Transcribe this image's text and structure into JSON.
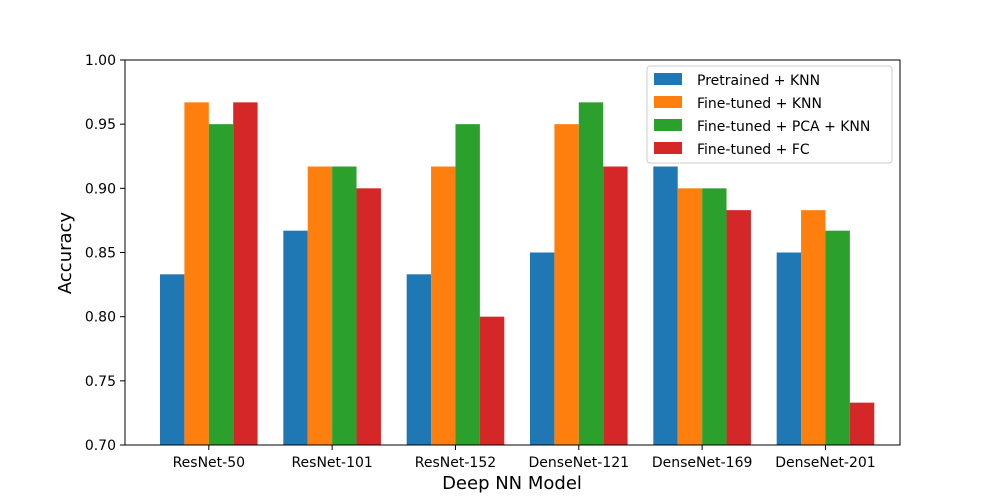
{
  "chart_data": {
    "type": "bar",
    "xlabel": "Deep NN Model",
    "ylabel": "Accuracy",
    "ylim": [
      0.7,
      1.0
    ],
    "yticks": [
      "0.70",
      "0.75",
      "0.80",
      "0.85",
      "0.90",
      "0.95",
      "1.00"
    ],
    "grid": false,
    "legend_position": "top-right",
    "categories": [
      "ResNet-50",
      "ResNet-101",
      "ResNet-152",
      "DenseNet-121",
      "DenseNet-169",
      "DenseNet-201"
    ],
    "series": [
      {
        "name": "Pretrained + KNN",
        "color": "#1f77b4",
        "values": [
          0.833,
          0.867,
          0.833,
          0.85,
          0.917,
          0.85
        ]
      },
      {
        "name": "Fine-tuned + KNN",
        "color": "#ff7f0e",
        "values": [
          0.967,
          0.917,
          0.917,
          0.95,
          0.9,
          0.883
        ]
      },
      {
        "name": "Fine-tuned + PCA + KNN",
        "color": "#2ca02c",
        "values": [
          0.95,
          0.917,
          0.95,
          0.967,
          0.9,
          0.867
        ]
      },
      {
        "name": "Fine-tuned + FC",
        "color": "#d62728",
        "values": [
          0.967,
          0.9,
          0.8,
          0.917,
          0.883,
          0.733
        ]
      }
    ]
  }
}
